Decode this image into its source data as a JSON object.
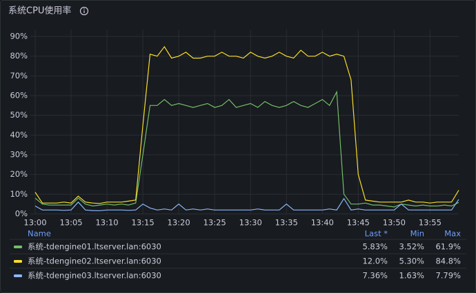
{
  "chart_data": {
    "type": "line",
    "title": "系统CPU使用率",
    "x": [
      "13:00",
      "13:01",
      "13:02",
      "13:03",
      "13:04",
      "13:05",
      "13:06",
      "13:07",
      "13:08",
      "13:09",
      "13:10",
      "13:11",
      "13:12",
      "13:13",
      "13:14",
      "13:15",
      "13:16",
      "13:17",
      "13:18",
      "13:19",
      "13:20",
      "13:21",
      "13:22",
      "13:23",
      "13:24",
      "13:25",
      "13:26",
      "13:27",
      "13:28",
      "13:29",
      "13:30",
      "13:31",
      "13:32",
      "13:33",
      "13:34",
      "13:35",
      "13:36",
      "13:37",
      "13:38",
      "13:39",
      "13:40",
      "13:41",
      "13:42",
      "13:43",
      "13:44",
      "13:45",
      "13:46",
      "13:47",
      "13:48",
      "13:49",
      "13:50",
      "13:51",
      "13:52",
      "13:53",
      "13:54",
      "13:55",
      "13:56",
      "13:57",
      "13:58",
      "13:59"
    ],
    "xlim": [
      "13:00",
      "13:59"
    ],
    "xticks": [
      "13:00",
      "13:05",
      "13:10",
      "13:15",
      "13:20",
      "13:25",
      "13:30",
      "13:35",
      "13:40",
      "13:45",
      "13:50",
      "13:55"
    ],
    "ylim": [
      0,
      90
    ],
    "yticks": [
      {
        "value": 0,
        "label": "0%"
      },
      {
        "value": 10,
        "label": "10%"
      },
      {
        "value": 20,
        "label": "20%"
      },
      {
        "value": 30,
        "label": "30%"
      },
      {
        "value": 40,
        "label": "40%"
      },
      {
        "value": 50,
        "label": "50%"
      },
      {
        "value": 60,
        "label": "60%"
      },
      {
        "value": 70,
        "label": "70%"
      },
      {
        "value": 80,
        "label": "80%"
      },
      {
        "value": 90,
        "label": "90%"
      }
    ],
    "grid": true,
    "legend_columns": [
      "Name",
      "Last *",
      "Min",
      "Max"
    ],
    "series": [
      {
        "name": "系统-tdengine01.ltserver.lan:6030",
        "color": "#73bf69",
        "last": "5.83%",
        "min": "3.52%",
        "max": "61.9%",
        "values": [
          8,
          5,
          4.5,
          4.5,
          4.5,
          4.5,
          8,
          5,
          4,
          4.5,
          5,
          4.5,
          5,
          4.5,
          5.5,
          30,
          55,
          55,
          58,
          55,
          56,
          55,
          54,
          55,
          56,
          54,
          55,
          58,
          54,
          55,
          56,
          54,
          57,
          55,
          54,
          55,
          57,
          55,
          54,
          56,
          58,
          55,
          61.9,
          10,
          5,
          5,
          5.5,
          4.5,
          4.5,
          4,
          3.52,
          5,
          4.5,
          4,
          4.5,
          4,
          4,
          4.5,
          4,
          5.83
        ]
      },
      {
        "name": "系统-tdengine02.ltserver.lan:6030",
        "color": "#fade2a",
        "last": "12.0%",
        "min": "5.30%",
        "max": "84.8%",
        "values": [
          11,
          5.5,
          5.5,
          5.5,
          6,
          5.5,
          9,
          6,
          5.5,
          5.3,
          6,
          6,
          6,
          6.5,
          7,
          45,
          81,
          80,
          84.8,
          79,
          80,
          82,
          79,
          79,
          80,
          80,
          82,
          80,
          80,
          79,
          82,
          80,
          79,
          80,
          82,
          80,
          79,
          83,
          80,
          80,
          82,
          80,
          81,
          80,
          68,
          20,
          7,
          6.5,
          6,
          6,
          6,
          6,
          7,
          6,
          6,
          5.5,
          6,
          6,
          6,
          12.0
        ]
      },
      {
        "name": "系统-tdengine03.ltserver.lan:6030",
        "color": "#8ab8ff",
        "last": "7.36%",
        "min": "1.63%",
        "max": "7.79%",
        "values": [
          4,
          2,
          2,
          2,
          1.8,
          2,
          6,
          2,
          1.7,
          1.63,
          2,
          2,
          2,
          1.8,
          2,
          5,
          3,
          2,
          2.5,
          2,
          5,
          2,
          2.5,
          2,
          2.5,
          2,
          2,
          2,
          2,
          2,
          2,
          2.5,
          2,
          2,
          2,
          5,
          2,
          2,
          2,
          2,
          2,
          2.5,
          2,
          7.79,
          2,
          2.5,
          2,
          2,
          2,
          2,
          2,
          5,
          2,
          2,
          2,
          2,
          2,
          2,
          2,
          7.36
        ]
      }
    ]
  }
}
